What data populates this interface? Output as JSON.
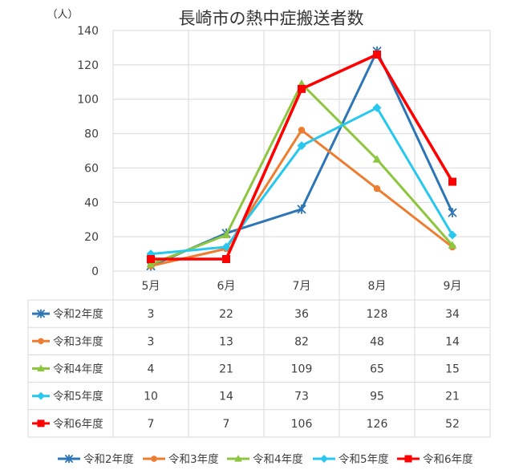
{
  "chart_data": {
    "type": "line",
    "title": "長崎市の熱中症搬送者数",
    "unit_label": "（人）",
    "categories": [
      "5月",
      "6月",
      "7月",
      "8月",
      "9月"
    ],
    "ylim": [
      0,
      140
    ],
    "yticks": [
      0,
      20,
      40,
      60,
      80,
      100,
      120,
      140
    ],
    "grid": true,
    "legend_position": "bottom",
    "data_table": true,
    "series": [
      {
        "name": "令和2年度",
        "values": [
          3,
          22,
          36,
          128,
          34
        ],
        "color": "#2E75B6",
        "marker": "asterisk"
      },
      {
        "name": "令和3年度",
        "values": [
          3,
          13,
          82,
          48,
          14
        ],
        "color": "#ED7D31",
        "marker": "circle"
      },
      {
        "name": "令和4年度",
        "values": [
          4,
          21,
          109,
          65,
          15
        ],
        "color": "#8CC63F",
        "marker": "triangle"
      },
      {
        "name": "令和5年度",
        "values": [
          10,
          14,
          73,
          95,
          21
        ],
        "color": "#27C7EE",
        "marker": "diamond"
      },
      {
        "name": "令和6年度",
        "values": [
          7,
          7,
          106,
          126,
          52
        ],
        "color": "#FF0000",
        "marker": "square"
      }
    ]
  }
}
